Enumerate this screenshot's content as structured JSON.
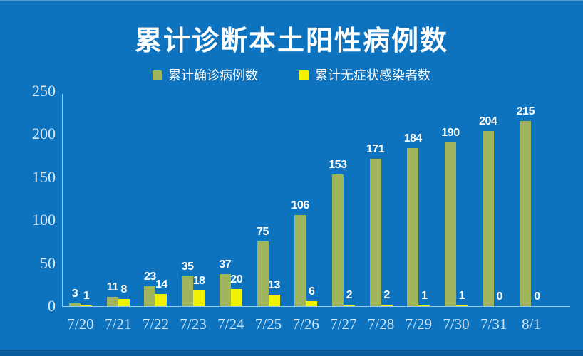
{
  "title": "累计诊断本土阳性病例数",
  "legend": {
    "items": [
      {
        "label": "累计确诊病例数",
        "color": "#A0B45C"
      },
      {
        "label": "累计无症状感染者数",
        "color": "#F1F203"
      }
    ]
  },
  "chart_data": {
    "type": "bar",
    "title": "累计诊断本土阳性病例数",
    "categories": [
      "7/20",
      "7/21",
      "7/22",
      "7/23",
      "7/24",
      "7/25",
      "7/26",
      "7/27",
      "7/28",
      "7/29",
      "7/30",
      "7/31",
      "8/1"
    ],
    "series": [
      {
        "name": "累计确诊病例数",
        "color": "#A0B45C",
        "values": [
          3,
          11,
          23,
          35,
          37,
          75,
          106,
          153,
          171,
          184,
          190,
          204,
          215
        ]
      },
      {
        "name": "累计无症状感染者数",
        "color": "#F1F203",
        "values": [
          1,
          8,
          14,
          18,
          20,
          13,
          6,
          2,
          2,
          1,
          1,
          0,
          0
        ]
      }
    ],
    "xlabel": "",
    "ylabel": "",
    "ylim": [
      0,
      250
    ],
    "yticks": [
      0,
      50,
      100,
      150,
      200,
      250
    ],
    "grid": false,
    "data_labels": true,
    "legend_position": "top"
  },
  "colors": {
    "background": "#0E73BE",
    "bottom_strip": "#0A5C9D",
    "axis": "#CDE4F6",
    "ytick_label": "#D9EAF8",
    "xtick_label": "#CDE5F7",
    "title": "#FFFFFF",
    "value_label": "#FFFFFF"
  }
}
